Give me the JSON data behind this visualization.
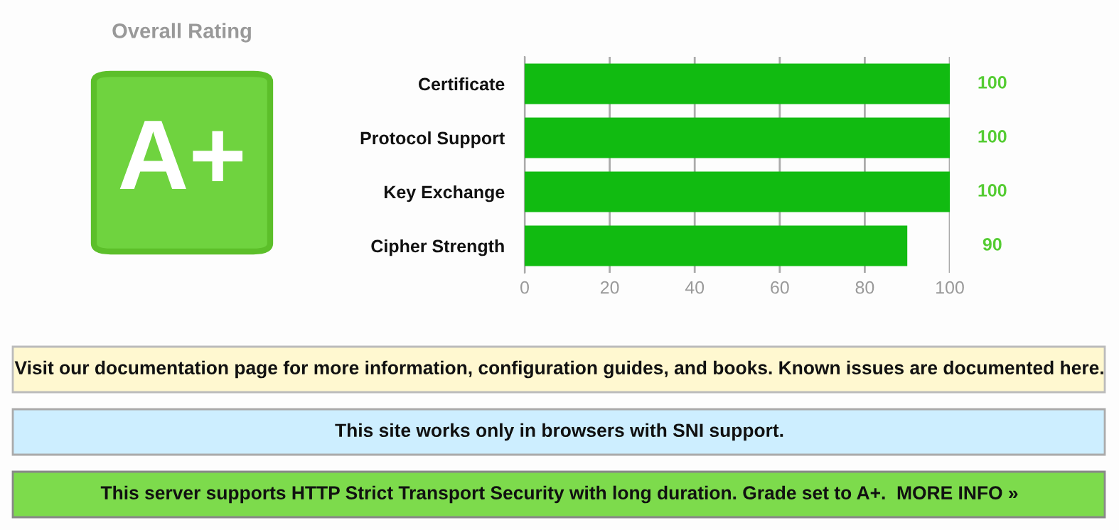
{
  "chart_data": {
    "type": "bar",
    "orientation": "horizontal",
    "categories": [
      "Certificate",
      "Protocol Support",
      "Key Exchange",
      "Cipher Strength"
    ],
    "values": [
      100,
      100,
      100,
      90
    ],
    "color": "#11bb11",
    "xlim": [
      0,
      100
    ],
    "xticks": [
      0,
      20,
      40,
      60,
      80,
      100
    ],
    "grid": "x",
    "data_labels": true,
    "annotations": [
      "Overall Rating",
      "A+",
      "Visit our documentation page for more information, configuration guides, and books. Known issues are documented here.",
      "This site works only in browsers with SNI support.",
      "This server supports HTTP Strict Transport Security with long duration. Grade set to A+.  MORE INFO »"
    ]
  }
}
